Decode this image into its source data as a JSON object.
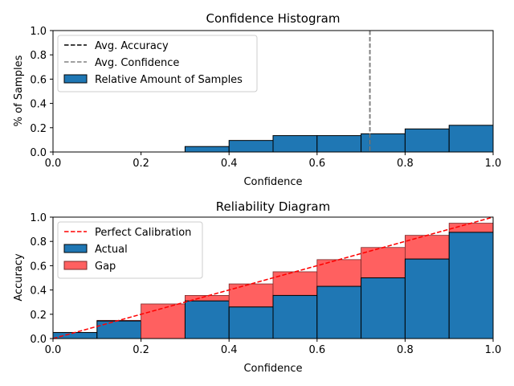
{
  "chart_data": [
    {
      "type": "bar",
      "id": "hist",
      "title": "Confidence Histogram",
      "xlabel": "Confidence",
      "ylabel": "% of Samples",
      "xlim": [
        0.0,
        1.0
      ],
      "ylim": [
        0.0,
        1.0
      ],
      "xticks": [
        "0.0",
        "0.2",
        "0.4",
        "0.6",
        "0.8",
        "1.0"
      ],
      "yticks": [
        "0.0",
        "0.2",
        "0.4",
        "0.6",
        "0.8",
        "1.0"
      ],
      "bin_edges": [
        0.0,
        0.1,
        0.2,
        0.3,
        0.4,
        0.5,
        0.6,
        0.7,
        0.8,
        0.9,
        1.0
      ],
      "values": [
        0.0,
        0.0,
        0.0,
        0.045,
        0.095,
        0.135,
        0.135,
        0.15,
        0.19,
        0.22
      ],
      "avg_accuracy": 0.72,
      "avg_confidence": 0.72,
      "legend": [
        {
          "label": "Avg. Accuracy",
          "style": "dash",
          "color": "#000000"
        },
        {
          "label": "Avg. Confidence",
          "style": "dash",
          "color": "#808080"
        },
        {
          "label": "Relative Amount of Samples",
          "style": "patch",
          "color": "#1f77b4"
        }
      ]
    },
    {
      "type": "bar",
      "id": "rel",
      "title": "Reliability Diagram",
      "xlabel": "Confidence",
      "ylabel": "Accuracy",
      "xlim": [
        0.0,
        1.0
      ],
      "ylim": [
        0.0,
        1.0
      ],
      "xticks": [
        "0.0",
        "0.2",
        "0.4",
        "0.6",
        "0.8",
        "1.0"
      ],
      "yticks": [
        "0.0",
        "0.2",
        "0.4",
        "0.6",
        "0.8",
        "1.0"
      ],
      "bin_edges": [
        0.0,
        0.1,
        0.2,
        0.3,
        0.4,
        0.5,
        0.6,
        0.7,
        0.8,
        0.9,
        1.0
      ],
      "actual": [
        0.05,
        0.145,
        0.0,
        0.31,
        0.26,
        0.355,
        0.43,
        0.5,
        0.655,
        0.875
      ],
      "gap_top": [
        0.05,
        0.15,
        0.285,
        0.355,
        0.45,
        0.55,
        0.65,
        0.75,
        0.85,
        0.95
      ],
      "legend": [
        {
          "label": "Perfect Calibration",
          "style": "dash",
          "color": "#ff0000"
        },
        {
          "label": "Actual",
          "style": "patch",
          "color": "#1f77b4"
        },
        {
          "label": "Gap",
          "style": "patch",
          "color": "#ff6060"
        }
      ]
    }
  ],
  "colors": {
    "bar": "#1f77b4",
    "gap": "#ff6060",
    "perfect": "#ff0000",
    "avg_confidence": "#808080",
    "avg_accuracy": "#000000"
  }
}
